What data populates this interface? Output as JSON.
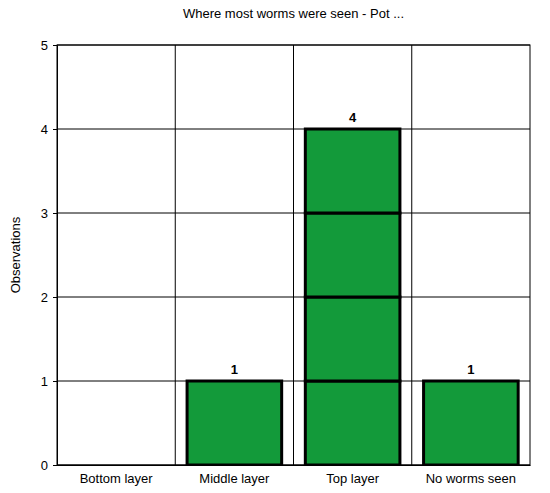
{
  "chart_data": {
    "type": "bar",
    "title": "Where most worms were seen - Pot ...",
    "y_label": "Observations",
    "categories": [
      "Bottom layer",
      "Middle layer",
      "Top layer",
      "No worms seen"
    ],
    "values": [
      0,
      1,
      4,
      1
    ],
    "value_labels": [
      null,
      "1",
      "4",
      "1"
    ],
    "color": "#139a3a",
    "ylim": [
      0,
      5
    ],
    "yticks": [
      0,
      1,
      2,
      3,
      4,
      5
    ],
    "grid": true,
    "data_labels": true
  }
}
